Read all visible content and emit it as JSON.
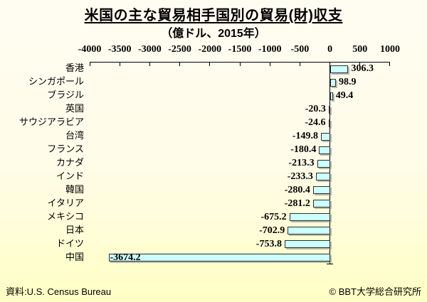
{
  "header": {
    "title": "米国の主な貿易相手国別の貿易(財)収支",
    "subtitle": "（億ドル、2015年）"
  },
  "footer": {
    "source": "資料:U.S. Census Bureau",
    "credit": "© BBT大学総合研究所"
  },
  "colors": {
    "background_top": "#fffdf2",
    "background_bottom": "#ffffc4",
    "bar_fill": "#ccffff",
    "bar_border": "#2e2e2e",
    "bar_shadow": "rgba(130,130,130,0.55)",
    "axis": "#000000",
    "text": "#000000"
  },
  "chart_data": {
    "type": "bar",
    "orientation": "horizontal",
    "title": "米国の主な貿易相手国別の貿易(財)収支",
    "subtitle": "（億ドル、2015年）",
    "unit": "億ドル",
    "year": 2015,
    "categories": [
      "香港",
      "シンガポール",
      "ブラジル",
      "英国",
      "サウジアラビア",
      "台湾",
      "フランス",
      "カナダ",
      "インド",
      "韓国",
      "イタリア",
      "メキシコ",
      "日本",
      "ドイツ",
      "中国"
    ],
    "values": [
      306.3,
      98.9,
      49.4,
      -20.3,
      -24.6,
      -149.8,
      -180.4,
      -213.3,
      -233.3,
      -280.4,
      -281.2,
      -675.2,
      -702.9,
      -753.8,
      -3674.2
    ],
    "xlim": [
      -4000,
      1000
    ],
    "xtick_step": 500,
    "xticks": [
      -4000,
      -3500,
      -3000,
      -2500,
      -2000,
      -1500,
      -1000,
      -500,
      0,
      500,
      1000
    ],
    "grid": false,
    "legend": false,
    "value_labels": true,
    "inside_label_categories": [
      "中国"
    ]
  }
}
